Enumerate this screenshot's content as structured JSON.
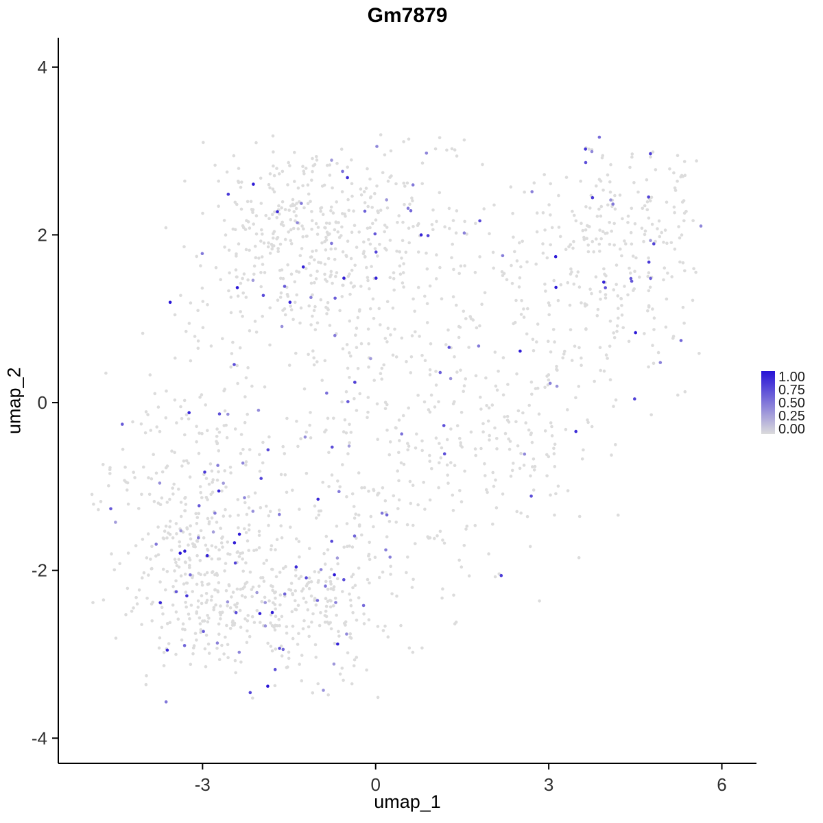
{
  "chart_data": {
    "type": "scatter",
    "title": "Gm7879",
    "xlabel": "umap_1",
    "ylabel": "umap_2",
    "xlim": [
      -5.5,
      6.6
    ],
    "ylim": [
      -4.3,
      4.35
    ],
    "x_ticks": [
      "-3",
      "0",
      "3",
      "6"
    ],
    "y_ticks": [
      "-4",
      "-2",
      "0",
      "2",
      "4"
    ],
    "grid": false,
    "background": "#FFFFFF",
    "axis_color": "#000000",
    "tick_label_color": "#303030",
    "point": {
      "radius": 2.3,
      "low_color": "#DCDCDC",
      "high_color": "#2612D6"
    },
    "legend": {
      "position": "right",
      "labels": [
        "1.00",
        "0.75",
        "0.50",
        "0.25",
        "0.00"
      ],
      "low_color": "#DCDCDC",
      "high_color": "#2612D6"
    },
    "generator": {
      "seed": 42,
      "colored_fraction": 0.08,
      "clip": {
        "xmin": -4.95,
        "xmax": 5.65,
        "ymin": -3.65,
        "ymax": 3.2
      },
      "clusters": [
        {
          "cx": -2.7,
          "cy": -2.25,
          "sx": 0.85,
          "sy": 0.6,
          "n": 300
        },
        {
          "cx": -1.15,
          "cy": -2.45,
          "sx": 0.8,
          "sy": 0.5,
          "n": 190
        },
        {
          "cx": -2.75,
          "cy": -0.5,
          "sx": 0.7,
          "sy": 0.85,
          "n": 170
        },
        {
          "cx": -1.6,
          "cy": 1.9,
          "sx": 0.85,
          "sy": 0.62,
          "n": 280
        },
        {
          "cx": -0.3,
          "cy": 2.25,
          "sx": 0.85,
          "sy": 0.5,
          "n": 140
        },
        {
          "cx": -0.2,
          "cy": 0.6,
          "sx": 0.85,
          "sy": 0.95,
          "n": 170
        },
        {
          "cx": 0.45,
          "cy": -1.1,
          "sx": 0.8,
          "sy": 0.7,
          "n": 130
        },
        {
          "cx": 1.4,
          "cy": 0.9,
          "sx": 0.75,
          "sy": 1.0,
          "n": 90
        },
        {
          "cx": 3.9,
          "cy": 1.65,
          "sx": 0.95,
          "sy": 0.7,
          "n": 260
        },
        {
          "cx": 2.7,
          "cy": -0.45,
          "sx": 0.75,
          "sy": 0.6,
          "n": 110
        },
        {
          "cx": 4.85,
          "cy": 2.35,
          "sx": 0.5,
          "sy": 0.42,
          "n": 60
        },
        {
          "cx": -3.7,
          "cy": -1.35,
          "sx": 0.5,
          "sy": 0.65,
          "n": 70
        },
        {
          "cx": -4.65,
          "cy": -1.3,
          "sx": 0.2,
          "sy": 0.28,
          "n": 10
        }
      ]
    }
  }
}
